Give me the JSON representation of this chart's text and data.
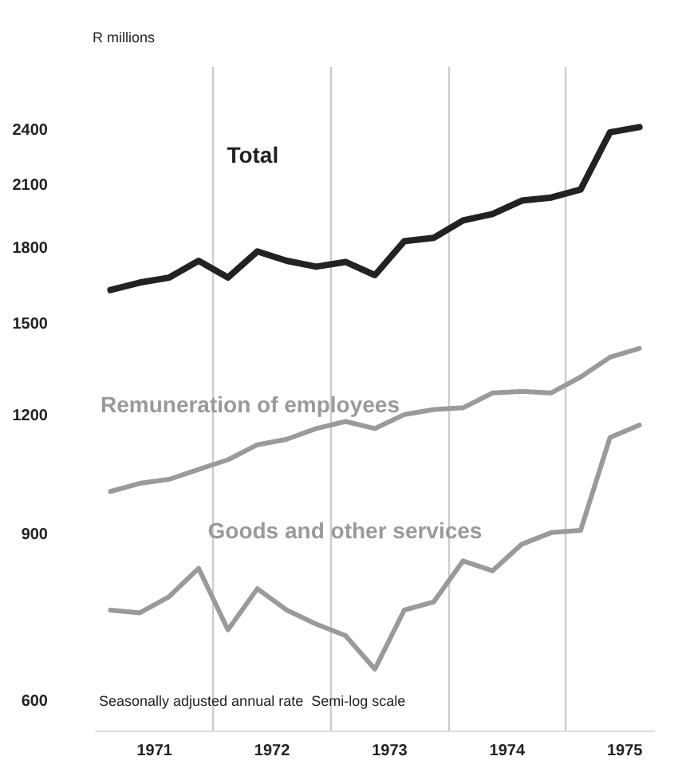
{
  "chart_data": {
    "type": "line",
    "ylabel": "R millions",
    "x": [
      1971.125,
      1971.375,
      1971.625,
      1971.875,
      1972.125,
      1972.375,
      1972.625,
      1972.875,
      1973.125,
      1973.375,
      1973.625,
      1973.875,
      1974.125,
      1974.375,
      1974.625,
      1974.875,
      1975.125,
      1975.375,
      1975.625
    ],
    "series": [
      {
        "name": "Total",
        "color": "#222222",
        "values": [
          1630,
          1660,
          1680,
          1750,
          1680,
          1790,
          1750,
          1725,
          1745,
          1690,
          1835,
          1850,
          1930,
          1960,
          2025,
          2040,
          2080,
          2390,
          2420
        ]
      },
      {
        "name": "Remuneration of employees",
        "color": "#9a9a9a",
        "values": [
          1000,
          1020,
          1030,
          1055,
          1080,
          1120,
          1135,
          1165,
          1185,
          1165,
          1205,
          1220,
          1225,
          1270,
          1275,
          1270,
          1320,
          1385,
          1415
        ]
      },
      {
        "name": "Goods and other services",
        "color": "#9a9a9a",
        "values": [
          750,
          745,
          775,
          830,
          715,
          790,
          750,
          725,
          705,
          650,
          750,
          765,
          845,
          825,
          880,
          905,
          910,
          1140,
          1175
        ]
      }
    ],
    "log": "y",
    "xlim": [
      1971,
      1975.75
    ],
    "ylim": [
      560,
      2800
    ],
    "xticks": [
      {
        "value": 1971.5,
        "label": "1971"
      },
      {
        "value": 1972,
        "label": null
      },
      {
        "value": 1972.5,
        "label": "1972"
      },
      {
        "value": 1973,
        "label": null
      },
      {
        "value": 1973.5,
        "label": "1973"
      },
      {
        "value": 1974,
        "label": null
      },
      {
        "value": 1974.5,
        "label": "1974"
      },
      {
        "value": 1975,
        "label": null
      },
      {
        "value": 1975.5,
        "label": "1975"
      }
    ],
    "yticks": [
      600,
      900,
      1200,
      1500,
      1800,
      2100,
      2400
    ],
    "grid": "x",
    "legend": false,
    "marker": "none",
    "line_style": "solid",
    "annotations": [
      "Seasonally adjusted annual rate  Semi-log scale"
    ]
  }
}
